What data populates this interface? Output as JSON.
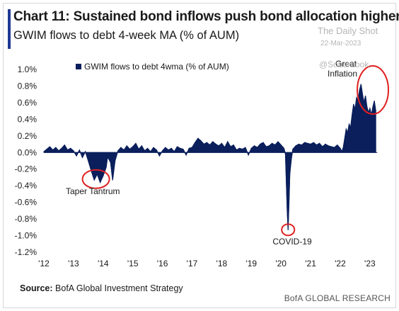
{
  "title": "Chart 11: Sustained bond inflows push bond allocation higher",
  "subtitle": "GWIM flows to debt 4-week MA (% of AUM)",
  "watermark": {
    "name": "The Daily Shot",
    "date": "22-Mar-2023",
    "handle": "@SoberLook"
  },
  "source": {
    "label": "Source:",
    "text": "BofA Global Investment Strategy"
  },
  "brand": "BofA GLOBAL RESEARCH",
  "colors": {
    "series": "#0a1f5c",
    "annotation_circle": "#e02020",
    "title_bar": "#1f3a93"
  },
  "chart_data": {
    "type": "area",
    "title": "Chart 11: Sustained bond inflows push bond allocation higher",
    "ylabel": "",
    "xlabel": "",
    "ylim": [
      -1.2,
      1.0
    ],
    "yticks": [
      "1.0%",
      "0.8%",
      "0.6%",
      "0.4%",
      "0.2%",
      "0.0%",
      "-0.2%",
      "-0.4%",
      "-0.6%",
      "-0.8%",
      "-1.0%",
      "-1.2%"
    ],
    "xlim": [
      2012,
      2023.6
    ],
    "xticks": [
      "'12",
      "'13",
      "'14",
      "'15",
      "'16",
      "'17",
      "'18",
      "'19",
      "'20",
      "'21",
      "'22",
      "'23"
    ],
    "legend": {
      "position": "top-left",
      "entries": [
        "GWIM flows to debt 4wma (% of AUM)"
      ]
    },
    "grid": false,
    "series": [
      {
        "name": "GWIM flows to debt 4wma (% of AUM)",
        "points": [
          [
            2012.0,
            0.01
          ],
          [
            2012.1,
            0.04
          ],
          [
            2012.2,
            0.07
          ],
          [
            2012.3,
            0.03
          ],
          [
            2012.4,
            0.06
          ],
          [
            2012.5,
            0.02
          ],
          [
            2012.6,
            0.05
          ],
          [
            2012.7,
            0.09
          ],
          [
            2012.8,
            0.03
          ],
          [
            2012.9,
            0.05
          ],
          [
            2013.0,
            0.02
          ],
          [
            2013.1,
            -0.04
          ],
          [
            2013.2,
            0.03
          ],
          [
            2013.3,
            -0.06
          ],
          [
            2013.4,
            0.01
          ],
          [
            2013.5,
            -0.1
          ],
          [
            2013.6,
            -0.22
          ],
          [
            2013.7,
            -0.33
          ],
          [
            2013.8,
            -0.26
          ],
          [
            2013.9,
            -0.36
          ],
          [
            2014.0,
            -0.28
          ],
          [
            2014.1,
            -0.18
          ],
          [
            2014.15,
            -0.05
          ],
          [
            2014.25,
            -0.12
          ],
          [
            2014.32,
            -0.33
          ],
          [
            2014.4,
            -0.1
          ],
          [
            2014.5,
            0.02
          ],
          [
            2014.6,
            0.06
          ],
          [
            2014.7,
            0.03
          ],
          [
            2014.8,
            0.08
          ],
          [
            2014.9,
            0.04
          ],
          [
            2015.0,
            0.07
          ],
          [
            2015.1,
            0.11
          ],
          [
            2015.2,
            0.04
          ],
          [
            2015.3,
            0.08
          ],
          [
            2015.4,
            0.02
          ],
          [
            2015.5,
            0.05
          ],
          [
            2015.6,
            0.01
          ],
          [
            2015.7,
            0.06
          ],
          [
            2015.8,
            0.03
          ],
          [
            2015.9,
            -0.04
          ],
          [
            2016.0,
            0.02
          ],
          [
            2016.1,
            0.06
          ],
          [
            2016.2,
            0.03
          ],
          [
            2016.3,
            0.05
          ],
          [
            2016.4,
            0.01
          ],
          [
            2016.5,
            0.07
          ],
          [
            2016.6,
            0.05
          ],
          [
            2016.7,
            0.04
          ],
          [
            2016.8,
            -0.03
          ],
          [
            2016.9,
            0.05
          ],
          [
            2017.0,
            0.06
          ],
          [
            2017.1,
            0.12
          ],
          [
            2017.2,
            0.17
          ],
          [
            2017.3,
            0.14
          ],
          [
            2017.4,
            0.1
          ],
          [
            2017.5,
            0.12
          ],
          [
            2017.6,
            0.09
          ],
          [
            2017.7,
            0.13
          ],
          [
            2017.8,
            0.1
          ],
          [
            2017.9,
            0.08
          ],
          [
            2018.0,
            0.11
          ],
          [
            2018.1,
            0.06
          ],
          [
            2018.2,
            0.13
          ],
          [
            2018.3,
            0.07
          ],
          [
            2018.4,
            0.09
          ],
          [
            2018.5,
            0.03
          ],
          [
            2018.6,
            0.05
          ],
          [
            2018.7,
            0.04
          ],
          [
            2018.8,
            0.06
          ],
          [
            2018.9,
            -0.03
          ],
          [
            2019.0,
            0.05
          ],
          [
            2019.1,
            0.08
          ],
          [
            2019.2,
            0.06
          ],
          [
            2019.3,
            0.1
          ],
          [
            2019.4,
            0.12
          ],
          [
            2019.5,
            0.07
          ],
          [
            2019.6,
            0.08
          ],
          [
            2019.7,
            0.11
          ],
          [
            2019.8,
            0.09
          ],
          [
            2019.9,
            0.13
          ],
          [
            2020.0,
            0.09
          ],
          [
            2020.1,
            0.05
          ],
          [
            2020.15,
            -0.02
          ],
          [
            2020.18,
            -0.35
          ],
          [
            2020.21,
            -0.7
          ],
          [
            2020.24,
            -0.93
          ],
          [
            2020.27,
            -0.6
          ],
          [
            2020.3,
            -0.25
          ],
          [
            2020.35,
            -0.08
          ],
          [
            2020.4,
            0.04
          ],
          [
            2020.5,
            0.08
          ],
          [
            2020.6,
            0.1
          ],
          [
            2020.7,
            0.09
          ],
          [
            2020.8,
            0.12
          ],
          [
            2020.9,
            0.11
          ],
          [
            2021.0,
            0.1
          ],
          [
            2021.1,
            0.12
          ],
          [
            2021.2,
            0.09
          ],
          [
            2021.3,
            0.11
          ],
          [
            2021.4,
            0.07
          ],
          [
            2021.5,
            0.1
          ],
          [
            2021.6,
            0.08
          ],
          [
            2021.7,
            0.07
          ],
          [
            2021.8,
            0.06
          ],
          [
            2021.9,
            0.09
          ],
          [
            2022.0,
            0.05
          ],
          [
            2022.05,
            0.01
          ],
          [
            2022.1,
            0.06
          ],
          [
            2022.15,
            0.17
          ],
          [
            2022.2,
            0.28
          ],
          [
            2022.25,
            0.24
          ],
          [
            2022.3,
            0.34
          ],
          [
            2022.35,
            0.3
          ],
          [
            2022.4,
            0.45
          ],
          [
            2022.45,
            0.58
          ],
          [
            2022.5,
            0.52
          ],
          [
            2022.55,
            0.66
          ],
          [
            2022.6,
            0.62
          ],
          [
            2022.65,
            0.75
          ],
          [
            2022.7,
            0.82
          ],
          [
            2022.75,
            0.7
          ],
          [
            2022.8,
            0.6
          ],
          [
            2022.85,
            0.68
          ],
          [
            2022.9,
            0.55
          ],
          [
            2022.95,
            0.48
          ],
          [
            2023.0,
            0.53
          ],
          [
            2023.05,
            0.45
          ],
          [
            2023.1,
            0.55
          ],
          [
            2023.15,
            0.62
          ],
          [
            2023.2,
            0.5
          ]
        ]
      }
    ],
    "annotations": [
      {
        "text": "Taper Tantrum",
        "x": 2013.9,
        "y": -0.32
      },
      {
        "text": "COVID-19",
        "x": 2020.24,
        "y": -0.93
      },
      {
        "text": "Great Inflation",
        "x": 2022.85,
        "y": 0.68
      }
    ]
  }
}
